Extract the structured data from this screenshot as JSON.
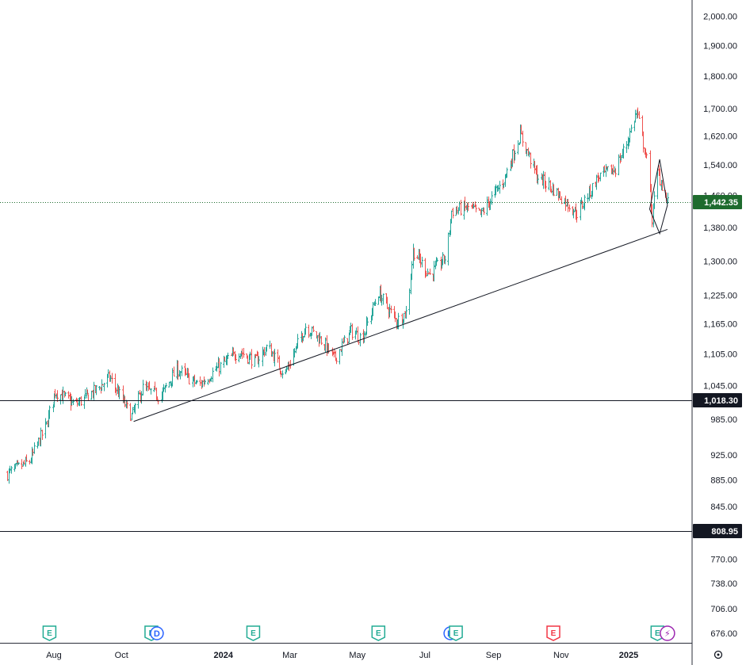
{
  "chart_data": {
    "type": "candlestick",
    "y_axis": {
      "scale": "log",
      "ticks": [
        "2,000.00",
        "1,900.00",
        "1,800.00",
        "1,700.00",
        "1,620.00",
        "1,540.00",
        "1,460.00",
        "1,380.00",
        "1,300.00",
        "1,225.00",
        "1,165.00",
        "1,105.00",
        "1,045.00",
        "985.00",
        "925.00",
        "885.00",
        "845.00",
        "808.95",
        "770.00",
        "738.00",
        "706.00",
        "676.00"
      ],
      "tick_values": [
        2000,
        1900,
        1800,
        1700,
        1620,
        1540,
        1460,
        1380,
        1300,
        1225,
        1165,
        1105,
        1045,
        985,
        925,
        885,
        845,
        808.95,
        770,
        738,
        706,
        676
      ],
      "range": [
        660,
        2080
      ]
    },
    "x_axis": {
      "ticks": [
        "Aug",
        "Oct",
        "2024",
        "Mar",
        "May",
        "Jul",
        "Sep",
        "Nov",
        "2025"
      ],
      "bold_ticks": [
        "2024",
        "2025"
      ],
      "range": [
        "2023-06-20",
        "2025-02-10"
      ]
    },
    "ohlc_path": {
      "start": "2023-06-20",
      "end": "2025-02-05",
      "keypoints": [
        [
          "2023-06-20",
          895
        ],
        [
          "2023-07-10",
          915
        ],
        [
          "2023-07-25",
          975
        ],
        [
          "2023-08-02",
          1035
        ],
        [
          "2023-08-20",
          1010
        ],
        [
          "2023-09-10",
          1040
        ],
        [
          "2023-09-20",
          1060
        ],
        [
          "2023-10-10",
          990
        ],
        [
          "2023-10-20",
          1040
        ],
        [
          "2023-11-05",
          1025
        ],
        [
          "2023-11-20",
          1075
        ],
        [
          "2023-12-10",
          1045
        ],
        [
          "2023-12-25",
          1075
        ],
        [
          "2024-01-15",
          1110
        ],
        [
          "2024-01-30",
          1090
        ],
        [
          "2024-02-10",
          1120
        ],
        [
          "2024-02-25",
          1065
        ],
        [
          "2024-03-15",
          1160
        ],
        [
          "2024-03-30",
          1130
        ],
        [
          "2024-04-10",
          1095
        ],
        [
          "2024-04-25",
          1150
        ],
        [
          "2024-05-05",
          1135
        ],
        [
          "2024-05-20",
          1230
        ],
        [
          "2024-06-05",
          1170
        ],
        [
          "2024-06-15",
          1190
        ],
        [
          "2024-06-20",
          1325
        ],
        [
          "2024-07-05",
          1270
        ],
        [
          "2024-07-20",
          1310
        ],
        [
          "2024-07-25",
          1420
        ],
        [
          "2024-08-10",
          1430
        ],
        [
          "2024-08-20",
          1410
        ],
        [
          "2024-09-10",
          1500
        ],
        [
          "2024-09-25",
          1625
        ],
        [
          "2024-10-10",
          1510
        ],
        [
          "2024-10-25",
          1475
        ],
        [
          "2024-11-15",
          1415
        ],
        [
          "2024-12-05",
          1510
        ],
        [
          "2024-12-20",
          1530
        ],
        [
          "2024-12-30",
          1600
        ],
        [
          "2025-01-08",
          1690
        ],
        [
          "2025-01-18",
          1540
        ],
        [
          "2025-01-22",
          1400
        ],
        [
          "2025-01-27",
          1520
        ],
        [
          "2025-02-05",
          1442.35
        ]
      ]
    },
    "current_price": {
      "label": "1,442.35",
      "value": 1442.35,
      "color": "#1e6b2e"
    },
    "horizontal_lines": [
      {
        "label": "1,018.30",
        "value": 1018.3
      },
      {
        "label": "808.95",
        "value": 808.95
      }
    ],
    "trendline": {
      "from": [
        "2023-10-12",
        981
      ],
      "to": [
        "2025-02-05",
        1375
      ]
    },
    "diamond": {
      "top": [
        "2025-01-29",
        1555
      ],
      "right": [
        "2025-02-05",
        1435
      ],
      "bottom": [
        "2025-01-29",
        1365
      ],
      "left": [
        "2025-01-20",
        1425
      ]
    },
    "event_markers": [
      {
        "date": "2023-07-28",
        "label": "E",
        "type": "earnings"
      },
      {
        "date": "2023-10-28",
        "label": "E",
        "type": "earnings"
      },
      {
        "date": "2023-11-02",
        "label": "D",
        "type": "dividend"
      },
      {
        "date": "2024-01-28",
        "label": "E",
        "type": "earnings"
      },
      {
        "date": "2024-05-20",
        "label": "E",
        "type": "earnings"
      },
      {
        "date": "2024-07-24",
        "label": "D",
        "type": "dividend"
      },
      {
        "date": "2024-07-29",
        "label": "E",
        "type": "earnings"
      },
      {
        "date": "2024-10-25",
        "label": "E",
        "type": "earnings-negative"
      },
      {
        "date": "2025-01-27",
        "label": "E",
        "type": "earnings"
      },
      {
        "date": "2025-02-05",
        "label": "⚡",
        "type": "flash"
      }
    ],
    "colors": {
      "up": "#26a69a",
      "down": "#ef5350",
      "line": "#131722",
      "dotted": "#1e6b2e",
      "earnings": "#22ab94",
      "earnings_negative": "#f23645",
      "dividend": "#2962ff",
      "flash": "#9c27b0"
    }
  }
}
